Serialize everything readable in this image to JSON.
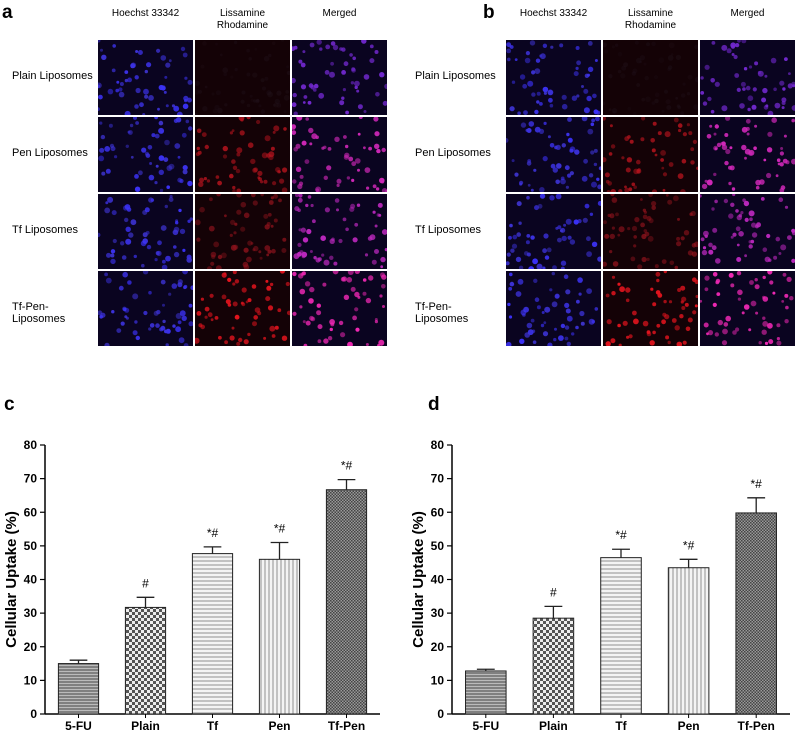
{
  "figure": {
    "panels": [
      {
        "label": "a",
        "columns": [
          "Hoechst 33342",
          "Lissamine Rhodamine",
          "Merged"
        ],
        "rows": [
          "Plain Liposomes",
          "Pen Liposomes",
          "Tf Liposomes",
          "Tf-Pen- Liposomes"
        ]
      },
      {
        "label": "b",
        "columns": [
          "Hoechst 33342",
          "Lissamine Rhodamine",
          "Merged"
        ],
        "rows": [
          "Plain Liposomes",
          "Pen Liposomes",
          "Tf Liposomes",
          "Tf-Pen- Liposomes"
        ]
      }
    ]
  },
  "chart_data": [
    {
      "type": "bar",
      "panel_label": "c",
      "ylabel": "Cellular Uptake (%)",
      "categories": [
        "5-FU",
        "Plain",
        "Tf",
        "Pen",
        "Tf-Pen"
      ],
      "values": [
        15,
        31.7,
        47.7,
        46,
        66.7
      ],
      "errors": [
        1,
        3,
        2,
        5,
        3
      ],
      "annotations": [
        null,
        "#",
        "*#",
        "*#",
        "*#"
      ],
      "ylim": [
        0,
        80
      ],
      "yticks": [
        0,
        10,
        20,
        30,
        40,
        50,
        60,
        70,
        80
      ]
    },
    {
      "type": "bar",
      "panel_label": "d",
      "ylabel": "Cellular Uptake (%)",
      "categories": [
        "5-FU",
        "Plain",
        "Tf",
        "Pen",
        "Tf-Pen"
      ],
      "values": [
        12.8,
        28.5,
        46.5,
        43.5,
        59.8
      ],
      "errors": [
        0.5,
        3.5,
        2.5,
        2.5,
        4.5
      ],
      "annotations": [
        null,
        "#",
        "*#",
        "*#",
        "*#"
      ],
      "ylim": [
        0,
        80
      ],
      "yticks": [
        0,
        10,
        20,
        30,
        40,
        50,
        60,
        70,
        80
      ]
    }
  ]
}
